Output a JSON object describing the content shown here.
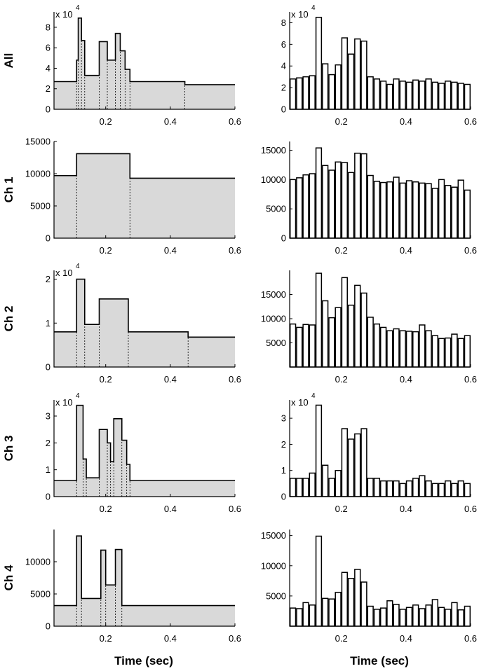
{
  "colors": {
    "fill": "#d9d9d9",
    "line": "#000000",
    "bar": "#ffffff",
    "background": "#ffffff"
  },
  "x_label": "Time (sec)",
  "chart_data": [
    {
      "id": "all-left",
      "type": "area",
      "row_label": "All",
      "xlim": [
        0.04,
        0.6
      ],
      "xticks": [
        0.2,
        0.4,
        0.6
      ],
      "xtick_labels": [
        "0.2",
        "0.4",
        "0.6"
      ],
      "ylim": [
        0,
        9.5
      ],
      "yticks": [
        0,
        2,
        4,
        6,
        8
      ],
      "ytick_labels": [
        "0",
        "2",
        "4",
        "6",
        "8"
      ],
      "multiplier": "x 10",
      "multiplier_exp": "4",
      "edges": [
        0.04,
        0.11,
        0.115,
        0.125,
        0.135,
        0.18,
        0.205,
        0.23,
        0.245,
        0.26,
        0.275,
        0.445,
        0.6
      ],
      "values": [
        2.7,
        4.8,
        8.9,
        6.7,
        3.3,
        6.6,
        4.8,
        7.4,
        5.7,
        3.9,
        2.7,
        2.4
      ]
    },
    {
      "id": "all-right",
      "type": "bar",
      "xlim": [
        0.04,
        0.6
      ],
      "xticks": [
        0.2,
        0.4,
        0.6
      ],
      "xtick_labels": [
        "0.2",
        "0.4",
        "0.6"
      ],
      "ylim": [
        0,
        9.0
      ],
      "yticks": [
        0,
        2,
        4,
        6,
        8
      ],
      "ytick_labels": [
        "0",
        "2",
        "4",
        "6",
        "8"
      ],
      "multiplier": "x 10",
      "multiplier_exp": "4",
      "x_start": 0.04,
      "bin_width": 0.02,
      "values": [
        2.8,
        2.9,
        3.0,
        3.1,
        8.5,
        4.2,
        3.2,
        4.1,
        6.6,
        5.1,
        6.5,
        6.3,
        3.0,
        2.8,
        2.6,
        2.3,
        2.8,
        2.6,
        2.5,
        2.7,
        2.6,
        2.8,
        2.5,
        2.4,
        2.6,
        2.5,
        2.4,
        2.3
      ]
    },
    {
      "id": "ch1-left",
      "type": "area",
      "row_label": "Ch 1",
      "xlim": [
        0.04,
        0.6
      ],
      "xticks": [
        0.2,
        0.4,
        0.6
      ],
      "xtick_labels": [
        "0.2",
        "0.4",
        "0.6"
      ],
      "ylim": [
        0,
        15000
      ],
      "yticks": [
        0,
        5000,
        10000,
        15000
      ],
      "ytick_labels": [
        "0",
        "5000",
        "10000",
        "15000"
      ],
      "edges": [
        0.04,
        0.11,
        0.275,
        0.6
      ],
      "values": [
        9700,
        13100,
        9300
      ]
    },
    {
      "id": "ch1-right",
      "type": "bar",
      "xlim": [
        0.04,
        0.6
      ],
      "xticks": [
        0.2,
        0.4,
        0.6
      ],
      "xtick_labels": [
        "0.2",
        "0.4",
        "0.6"
      ],
      "ylim": [
        0,
        16500
      ],
      "yticks": [
        0,
        5000,
        10000,
        15000
      ],
      "ytick_labels": [
        "0",
        "5000",
        "10000",
        "15000"
      ],
      "x_start": 0.04,
      "bin_width": 0.02,
      "values": [
        10000,
        10300,
        10800,
        11000,
        15400,
        12400,
        11600,
        13000,
        12900,
        11200,
        14500,
        14400,
        10700,
        9700,
        9500,
        9600,
        10400,
        9400,
        9800,
        9600,
        9400,
        9300,
        8500,
        10000,
        9000,
        8700,
        9900,
        8200
      ]
    },
    {
      "id": "ch2-left",
      "type": "area",
      "row_label": "Ch 2",
      "xlim": [
        0.04,
        0.6
      ],
      "xticks": [
        0.2,
        0.4,
        0.6
      ],
      "xtick_labels": [
        "0.2",
        "0.4",
        "0.6"
      ],
      "ylim": [
        0,
        2.2
      ],
      "yticks": [
        0,
        1,
        2
      ],
      "ytick_labels": [
        "0",
        "1",
        "2"
      ],
      "multiplier": "x 10",
      "multiplier_exp": "4",
      "edges": [
        0.04,
        0.11,
        0.135,
        0.18,
        0.27,
        0.455,
        0.6
      ],
      "values": [
        0.8,
        2.0,
        0.97,
        1.55,
        0.8,
        0.68
      ]
    },
    {
      "id": "ch2-right",
      "type": "bar",
      "xlim": [
        0.04,
        0.6
      ],
      "xticks": [
        0.2,
        0.4,
        0.6
      ],
      "xtick_labels": [
        "0.2",
        "0.4",
        "0.6"
      ],
      "ylim": [
        0,
        20000
      ],
      "yticks": [
        5000,
        10000,
        15000
      ],
      "ytick_labels": [
        "5000",
        "10000",
        "15000"
      ],
      "x_start": 0.04,
      "bin_width": 0.02,
      "values": [
        8900,
        8200,
        8800,
        8700,
        19400,
        13700,
        10200,
        12300,
        18500,
        12800,
        16900,
        15300,
        10300,
        8900,
        8200,
        7500,
        7900,
        7500,
        7400,
        7300,
        8700,
        7500,
        6500,
        5900,
        6000,
        6800,
        5900,
        6500
      ]
    },
    {
      "id": "ch3-left",
      "type": "area",
      "row_label": "Ch 3",
      "xlim": [
        0.04,
        0.6
      ],
      "xticks": [
        0.2,
        0.4,
        0.6
      ],
      "xtick_labels": [
        "0.2",
        "0.4",
        "0.6"
      ],
      "ylim": [
        0,
        3.6
      ],
      "yticks": [
        0,
        1,
        2,
        3
      ],
      "ytick_labels": [
        "0",
        "1",
        "2",
        "3"
      ],
      "multiplier": "x 10",
      "multiplier_exp": "4",
      "edges": [
        0.04,
        0.11,
        0.13,
        0.14,
        0.18,
        0.205,
        0.215,
        0.225,
        0.25,
        0.265,
        0.275,
        0.6
      ],
      "values": [
        0.6,
        3.4,
        1.4,
        0.7,
        2.5,
        2.0,
        1.3,
        2.9,
        2.1,
        1.2,
        0.6
      ]
    },
    {
      "id": "ch3-right",
      "type": "bar",
      "xlim": [
        0.04,
        0.6
      ],
      "xticks": [
        0.2,
        0.4,
        0.6
      ],
      "xtick_labels": [
        "0.2",
        "0.4",
        "0.6"
      ],
      "ylim": [
        0,
        3.7
      ],
      "yticks": [
        0,
        1,
        2,
        3
      ],
      "ytick_labels": [
        "0",
        "1",
        "2",
        "3"
      ],
      "multiplier": "x 10",
      "multiplier_exp": "4",
      "x_start": 0.04,
      "bin_width": 0.02,
      "values": [
        0.7,
        0.7,
        0.7,
        0.9,
        3.5,
        1.2,
        0.7,
        1.0,
        2.6,
        2.2,
        2.4,
        2.6,
        0.7,
        0.7,
        0.6,
        0.6,
        0.6,
        0.5,
        0.6,
        0.7,
        0.8,
        0.6,
        0.5,
        0.5,
        0.6,
        0.5,
        0.6,
        0.5
      ]
    },
    {
      "id": "ch4-left",
      "type": "area",
      "row_label": "Ch 4",
      "xlim": [
        0.04,
        0.6
      ],
      "xticks": [
        0.2,
        0.4,
        0.6
      ],
      "xtick_labels": [
        "0.2",
        "0.4",
        "0.6"
      ],
      "ylim": [
        0,
        15000
      ],
      "yticks": [
        0,
        5000,
        10000
      ],
      "ytick_labels": [
        "0",
        "5000",
        "10000"
      ],
      "edges": [
        0.04,
        0.11,
        0.125,
        0.185,
        0.2,
        0.23,
        0.25,
        0.6
      ],
      "values": [
        3200,
        14000,
        4300,
        11800,
        6400,
        11900,
        3200
      ]
    },
    {
      "id": "ch4-right",
      "type": "bar",
      "xlim": [
        0.04,
        0.6
      ],
      "xticks": [
        0.2,
        0.4,
        0.6
      ],
      "xtick_labels": [
        "0.2",
        "0.4",
        "0.6"
      ],
      "ylim": [
        0,
        16000
      ],
      "yticks": [
        5000,
        10000,
        15000
      ],
      "ytick_labels": [
        "5000",
        "10000",
        "15000"
      ],
      "x_start": 0.04,
      "bin_width": 0.02,
      "values": [
        3000,
        2900,
        3900,
        3500,
        14900,
        4600,
        4500,
        5600,
        8900,
        7900,
        9400,
        7300,
        3300,
        2800,
        3000,
        4200,
        3600,
        2800,
        3100,
        3500,
        2900,
        3500,
        4400,
        3100,
        2800,
        3900,
        2700,
        3300
      ]
    }
  ]
}
